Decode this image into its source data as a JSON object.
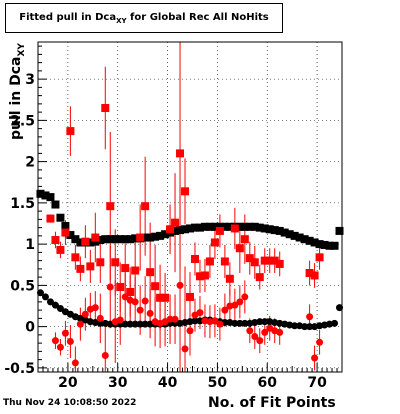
{
  "title": {
    "main": "Fitted pull in Dca",
    "sub": "XY",
    "rest": " for Global Rec All NoHits"
  },
  "footer": {
    "timestamp": "Thu Nov 24 10:08:50 2022"
  },
  "colors": {
    "series1": "#000000",
    "series2": "#ff0000",
    "axis": "#000000",
    "grid": "#000000"
  },
  "chart_data": {
    "type": "scatter",
    "title": "Fitted pull in Dca_XY for Global Rec All NoHits",
    "xlabel": "No. of Fit Points",
    "ylabel": "pull in Dca_XY",
    "xlim": [
      14,
      75
    ],
    "ylim": [
      -0.55,
      3.45
    ],
    "x_ticks": [
      20,
      30,
      40,
      50,
      60,
      70
    ],
    "y_ticks": [
      -0.5,
      0,
      0.5,
      1,
      1.5,
      2,
      2.5,
      3
    ],
    "x_tick_labels": [
      "20",
      "30",
      "40",
      "50",
      "60",
      "70"
    ],
    "y_tick_labels": [
      "-0.5",
      "0",
      "0.5",
      "1",
      "1.5",
      "2",
      "2.5",
      "3"
    ],
    "grid": true,
    "series": [
      {
        "color": "#000000",
        "marker": "square",
        "errors": false,
        "points": [
          [
            14.5,
            1.61
          ],
          [
            15.5,
            1.59
          ],
          [
            16.5,
            1.57
          ],
          [
            17.5,
            1.48
          ],
          [
            18.5,
            1.32
          ],
          [
            19.5,
            1.22
          ],
          [
            20.5,
            1.11
          ],
          [
            21.5,
            1.06
          ],
          [
            22.5,
            1.02
          ],
          [
            23.5,
            1.02
          ],
          [
            24.5,
            1.02
          ],
          [
            25.5,
            1.03
          ],
          [
            26.5,
            1.05
          ],
          [
            27.5,
            1.06
          ],
          [
            28.5,
            1.06
          ],
          [
            29.5,
            1.06
          ],
          [
            30.5,
            1.06
          ],
          [
            31.5,
            1.06
          ],
          [
            32.5,
            1.06
          ],
          [
            33.5,
            1.07
          ],
          [
            34.5,
            1.07
          ],
          [
            35.5,
            1.08
          ],
          [
            36.5,
            1.08
          ],
          [
            37.5,
            1.09
          ],
          [
            38.5,
            1.1
          ],
          [
            39.5,
            1.12
          ],
          [
            40.5,
            1.14
          ],
          [
            41.5,
            1.16
          ],
          [
            42.5,
            1.17
          ],
          [
            43.5,
            1.18
          ],
          [
            44.5,
            1.19
          ],
          [
            45.5,
            1.2
          ],
          [
            46.5,
            1.2
          ],
          [
            47.5,
            1.21
          ],
          [
            48.5,
            1.21
          ],
          [
            49.5,
            1.21
          ],
          [
            50.5,
            1.21
          ],
          [
            51.5,
            1.21
          ],
          [
            52.5,
            1.21
          ],
          [
            53.5,
            1.21
          ],
          [
            54.5,
            1.21
          ],
          [
            55.5,
            1.21
          ],
          [
            56.5,
            1.21
          ],
          [
            57.5,
            1.21
          ],
          [
            58.5,
            1.2
          ],
          [
            59.5,
            1.19
          ],
          [
            60.5,
            1.18
          ],
          [
            61.5,
            1.17
          ],
          [
            62.5,
            1.16
          ],
          [
            63.5,
            1.14
          ],
          [
            64.5,
            1.12
          ],
          [
            65.5,
            1.1
          ],
          [
            66.5,
            1.08
          ],
          [
            67.5,
            1.06
          ],
          [
            68.5,
            1.04
          ],
          [
            69.5,
            1.02
          ],
          [
            70.5,
            1.0
          ],
          [
            71.5,
            0.99
          ],
          [
            72.5,
            0.98
          ],
          [
            73.5,
            0.98
          ],
          [
            74.5,
            1.16
          ]
        ]
      },
      {
        "color": "#000000",
        "marker": "circle",
        "errors": false,
        "points": [
          [
            14.5,
            0.41
          ],
          [
            15.5,
            0.36
          ],
          [
            16.5,
            0.3
          ],
          [
            17.5,
            0.26
          ],
          [
            18.5,
            0.22
          ],
          [
            19.5,
            0.18
          ],
          [
            20.5,
            0.15
          ],
          [
            21.5,
            0.12
          ],
          [
            22.5,
            0.1
          ],
          [
            23.5,
            0.08
          ],
          [
            24.5,
            0.06
          ],
          [
            25.5,
            0.05
          ],
          [
            26.5,
            0.04
          ],
          [
            27.5,
            0.04
          ],
          [
            28.5,
            0.03
          ],
          [
            29.5,
            0.03
          ],
          [
            30.5,
            0.03
          ],
          [
            31.5,
            0.03
          ],
          [
            32.5,
            0.03
          ],
          [
            33.5,
            0.03
          ],
          [
            34.5,
            0.03
          ],
          [
            35.5,
            0.03
          ],
          [
            36.5,
            0.03
          ],
          [
            37.5,
            0.03
          ],
          [
            38.5,
            0.03
          ],
          [
            39.5,
            0.03
          ],
          [
            40.5,
            0.04
          ],
          [
            41.5,
            0.04
          ],
          [
            42.5,
            0.04
          ],
          [
            43.5,
            0.05
          ],
          [
            44.5,
            0.06
          ],
          [
            45.5,
            0.07
          ],
          [
            46.5,
            0.07
          ],
          [
            47.5,
            0.08
          ],
          [
            48.5,
            0.08
          ],
          [
            49.5,
            0.07
          ],
          [
            50.5,
            0.06
          ],
          [
            51.5,
            0.05
          ],
          [
            52.5,
            0.05
          ],
          [
            53.5,
            0.04
          ],
          [
            54.5,
            0.04
          ],
          [
            55.5,
            0.04
          ],
          [
            56.5,
            0.04
          ],
          [
            57.5,
            0.05
          ],
          [
            58.5,
            0.06
          ],
          [
            59.5,
            0.06
          ],
          [
            60.5,
            0.06
          ],
          [
            61.5,
            0.05
          ],
          [
            62.5,
            0.04
          ],
          [
            63.5,
            0.03
          ],
          [
            64.5,
            0.02
          ],
          [
            65.5,
            0.01
          ],
          [
            66.5,
            0.01
          ],
          [
            67.5,
            0.0
          ],
          [
            68.5,
            0.0
          ],
          [
            69.5,
            0.0
          ],
          [
            70.5,
            0.01
          ],
          [
            71.5,
            0.02
          ],
          [
            72.5,
            0.03
          ],
          [
            73.5,
            0.04
          ],
          [
            74.5,
            0.23
          ]
        ]
      },
      {
        "color": "#ff0000",
        "marker": "square",
        "errors": true,
        "points": [
          [
            16.5,
            1.31,
            0.05
          ],
          [
            17.5,
            1.05,
            0.1
          ],
          [
            18.5,
            0.93,
            0.1
          ],
          [
            19.5,
            1.14,
            0.15
          ],
          [
            20.5,
            2.37,
            0.3
          ],
          [
            21.5,
            0.84,
            0.15
          ],
          [
            22.5,
            0.7,
            0.15
          ],
          [
            23.5,
            1.03,
            0.2
          ],
          [
            24.5,
            0.73,
            0.2
          ],
          [
            25.5,
            1.08,
            0.3
          ],
          [
            26.5,
            0.78,
            0.25
          ],
          [
            27.5,
            2.65,
            0.5
          ],
          [
            28.5,
            1.46,
            0.9
          ],
          [
            29.5,
            0.78,
            0.4
          ],
          [
            30.5,
            0.48,
            0.3
          ],
          [
            31.5,
            0.71,
            0.3
          ],
          [
            32.5,
            0.42,
            0.3
          ],
          [
            33.5,
            0.68,
            0.4
          ],
          [
            34.5,
            1.08,
            0.4
          ],
          [
            35.5,
            1.46,
            0.6
          ],
          [
            36.5,
            0.66,
            0.6
          ],
          [
            37.5,
            0.49,
            0.5
          ],
          [
            38.5,
            0.35,
            0.4
          ],
          [
            39.5,
            0.35,
            0.3
          ],
          [
            40.5,
            1.18,
            0.3
          ],
          [
            41.5,
            1.26,
            0.6
          ],
          [
            42.5,
            2.1,
            1.4
          ],
          [
            43.5,
            1.64,
            0.4
          ],
          [
            44.5,
            0.36,
            0.3
          ],
          [
            45.5,
            0.82,
            0.2
          ],
          [
            46.5,
            0.61,
            0.2
          ],
          [
            47.5,
            0.62,
            0.2
          ],
          [
            48.5,
            0.79,
            0.2
          ],
          [
            49.5,
            1.02,
            0.2
          ],
          [
            50.5,
            1.16,
            0.2
          ],
          [
            51.5,
            0.79,
            0.2
          ],
          [
            52.5,
            0.58,
            0.2
          ],
          [
            53.5,
            1.19,
            0.25
          ],
          [
            54.5,
            0.95,
            0.3
          ],
          [
            55.5,
            1.06,
            0.3
          ],
          [
            56.5,
            0.83,
            0.2
          ],
          [
            57.5,
            0.78,
            0.2
          ],
          [
            58.5,
            0.6,
            0.15
          ],
          [
            59.5,
            0.8,
            0.15
          ],
          [
            60.5,
            0.8,
            0.15
          ],
          [
            61.5,
            0.8,
            0.15
          ],
          [
            62.5,
            0.76,
            0.15
          ],
          [
            68.5,
            0.65,
            0.15
          ],
          [
            69.5,
            0.62,
            0.15
          ],
          [
            70.5,
            0.84,
            0.15
          ]
        ]
      },
      {
        "color": "#ff0000",
        "marker": "circle",
        "errors": true,
        "points": [
          [
            17.5,
            -0.17,
            0.1
          ],
          [
            18.5,
            -0.25,
            0.1
          ],
          [
            19.5,
            -0.08,
            0.15
          ],
          [
            20.5,
            -0.18,
            0.2
          ],
          [
            21.5,
            -0.44,
            0.2
          ],
          [
            22.5,
            0.03,
            0.2
          ],
          [
            23.5,
            0.15,
            0.2
          ],
          [
            24.5,
            0.21,
            0.2
          ],
          [
            25.5,
            0.23,
            0.2
          ],
          [
            26.5,
            0.1,
            0.3
          ],
          [
            27.5,
            -0.35,
            0.4
          ],
          [
            28.5,
            0.48,
            0.5
          ],
          [
            29.5,
            0.06,
            0.5
          ],
          [
            30.5,
            0.08,
            0.3
          ],
          [
            31.5,
            0.36,
            0.3
          ],
          [
            32.5,
            0.32,
            0.3
          ],
          [
            33.5,
            0.3,
            0.3
          ],
          [
            34.5,
            0.2,
            0.3
          ],
          [
            35.5,
            0.31,
            0.3
          ],
          [
            36.5,
            0.16,
            0.3
          ],
          [
            37.5,
            0.06,
            0.3
          ],
          [
            38.5,
            0.04,
            0.3
          ],
          [
            39.5,
            0.06,
            0.3
          ],
          [
            40.5,
            0.09,
            0.3
          ],
          [
            41.5,
            0.09,
            0.3
          ],
          [
            42.5,
            0.5,
            1.2
          ],
          [
            43.5,
            -0.27,
            1.0
          ],
          [
            44.5,
            -0.05,
            0.3
          ],
          [
            45.5,
            0.14,
            0.2
          ],
          [
            46.5,
            0.17,
            0.2
          ],
          [
            47.5,
            0.07,
            0.2
          ],
          [
            48.5,
            0.06,
            0.2
          ],
          [
            49.5,
            0.07,
            0.2
          ],
          [
            50.5,
            0.03,
            0.2
          ],
          [
            51.5,
            0.2,
            0.2
          ],
          [
            52.5,
            0.25,
            0.2
          ],
          [
            53.5,
            0.26,
            0.2
          ],
          [
            54.5,
            0.3,
            0.2
          ],
          [
            55.5,
            0.36,
            0.2
          ],
          [
            56.5,
            -0.05,
            0.15
          ],
          [
            57.5,
            -0.12,
            0.15
          ],
          [
            58.5,
            -0.17,
            0.15
          ],
          [
            59.5,
            -0.07,
            0.15
          ],
          [
            60.5,
            -0.02,
            0.15
          ],
          [
            61.5,
            -0.05,
            0.15
          ],
          [
            62.5,
            -0.07,
            0.15
          ],
          [
            68.5,
            0.12,
            0.15
          ],
          [
            69.5,
            -0.38,
            0.15
          ],
          [
            70.5,
            -0.19,
            0.15
          ]
        ]
      }
    ]
  }
}
